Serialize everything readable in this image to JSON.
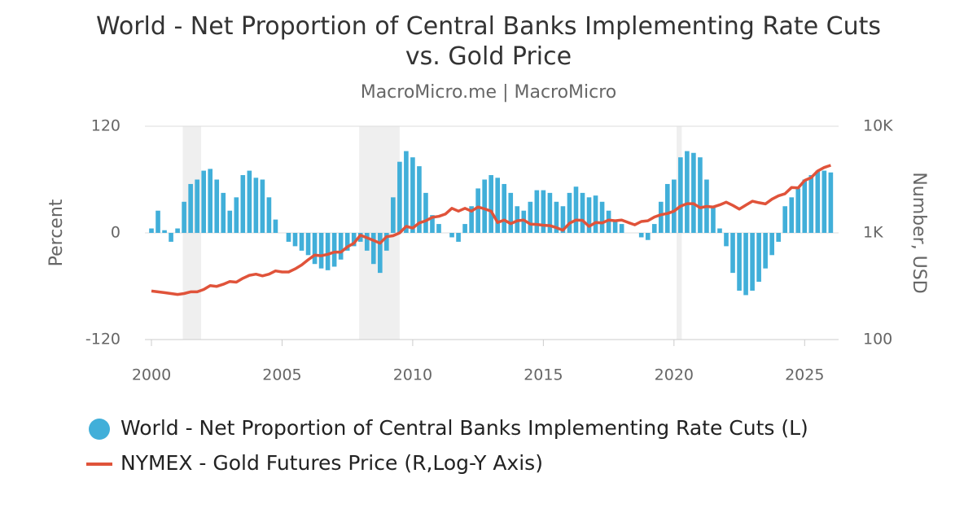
{
  "chart_data": {
    "type": "bar-line",
    "title": "World - Net Proportion of Central Banks Implementing Rate Cuts vs. Gold Price",
    "subtitle": "MacroMicro.me | MacroMicro",
    "y_label": "Percent",
    "y2_label": "Number, USD",
    "xlim": [
      2000,
      2026.3
    ],
    "xticks": [
      2000,
      2005,
      2010,
      2015,
      2020,
      2025
    ],
    "ylim": [
      -120,
      120
    ],
    "yticks": [
      -120,
      0,
      120
    ],
    "y2lim": [
      100,
      10000
    ],
    "y2_log": true,
    "y2ticks": [
      {
        "value": 100,
        "label": "100"
      },
      {
        "value": 1000,
        "label": "1K"
      },
      {
        "value": 10000,
        "label": "10K"
      }
    ],
    "grid": true,
    "bands": [
      [
        2001.2,
        2001.9
      ],
      [
        2007.95,
        2009.5
      ],
      [
        2020.1,
        2020.3
      ]
    ],
    "x": [
      2000,
      2000.25,
      2000.5,
      2000.75,
      2001,
      2001.25,
      2001.5,
      2001.75,
      2002,
      2002.25,
      2002.5,
      2002.75,
      2003,
      2003.25,
      2003.5,
      2003.75,
      2004,
      2004.25,
      2004.5,
      2004.75,
      2005,
      2005.25,
      2005.5,
      2005.75,
      2006,
      2006.25,
      2006.5,
      2006.75,
      2007,
      2007.25,
      2007.5,
      2007.75,
      2008,
      2008.25,
      2008.5,
      2008.75,
      2009,
      2009.25,
      2009.5,
      2009.75,
      2010,
      2010.25,
      2010.5,
      2010.75,
      2011,
      2011.25,
      2011.5,
      2011.75,
      2012,
      2012.25,
      2012.5,
      2012.75,
      2013,
      2013.25,
      2013.5,
      2013.75,
      2014,
      2014.25,
      2014.5,
      2014.75,
      2015,
      2015.25,
      2015.5,
      2015.75,
      2016,
      2016.25,
      2016.5,
      2016.75,
      2017,
      2017.25,
      2017.5,
      2017.75,
      2018,
      2018.25,
      2018.5,
      2018.75,
      2019,
      2019.25,
      2019.5,
      2019.75,
      2020,
      2020.25,
      2020.5,
      2020.75,
      2021,
      2021.25,
      2021.5,
      2021.75,
      2022,
      2022.25,
      2022.5,
      2022.75,
      2023,
      2023.25,
      2023.5,
      2023.75,
      2024,
      2024.25,
      2024.5,
      2024.75,
      2025,
      2025.25,
      2025.5,
      2025.75,
      2026
    ],
    "series": [
      {
        "name": "World - Net Proportion of Central Banks Implementing Rate Cuts (L)",
        "type": "bar",
        "color": "#41afd9",
        "values": [
          5,
          25,
          3,
          -10,
          5,
          35,
          55,
          60,
          70,
          72,
          60,
          45,
          25,
          40,
          65,
          70,
          62,
          60,
          40,
          15,
          0,
          -10,
          -15,
          -20,
          -25,
          -35,
          -40,
          -42,
          -38,
          -30,
          -20,
          -15,
          -10,
          -20,
          -35,
          -45,
          -20,
          40,
          80,
          92,
          85,
          75,
          45,
          20,
          10,
          0,
          -5,
          -10,
          10,
          30,
          50,
          60,
          65,
          62,
          55,
          45,
          30,
          25,
          35,
          48,
          48,
          45,
          35,
          30,
          45,
          52,
          45,
          40,
          42,
          35,
          25,
          15,
          10,
          0,
          0,
          -5,
          -8,
          10,
          35,
          55,
          60,
          85,
          92,
          90,
          85,
          60,
          30,
          5,
          -15,
          -45,
          -65,
          -70,
          -65,
          -55,
          -40,
          -25,
          -10,
          30,
          40,
          50,
          60,
          65,
          70,
          70,
          68
        ]
      },
      {
        "name": "NYMEX - Gold Futures Price (R,Log-Y Axis)",
        "type": "line",
        "axis": "y2",
        "color": "#e0533a",
        "values": [
          285,
          280,
          275,
          270,
          265,
          270,
          280,
          280,
          295,
          320,
          315,
          330,
          350,
          345,
          375,
          400,
          410,
          395,
          410,
          440,
          430,
          430,
          460,
          500,
          560,
          620,
          610,
          630,
          660,
          660,
          740,
          800,
          950,
          900,
          850,
          800,
          920,
          940,
          1000,
          1150,
          1110,
          1240,
          1300,
          1400,
          1430,
          1500,
          1700,
          1600,
          1700,
          1600,
          1750,
          1680,
          1600,
          1250,
          1320,
          1220,
          1300,
          1320,
          1210,
          1200,
          1180,
          1170,
          1120,
          1060,
          1230,
          1320,
          1310,
          1150,
          1250,
          1240,
          1320,
          1300,
          1320,
          1250,
          1190,
          1280,
          1300,
          1410,
          1480,
          1520,
          1600,
          1780,
          1880,
          1880,
          1720,
          1770,
          1750,
          1830,
          1940,
          1810,
          1670,
          1820,
          1980,
          1920,
          1870,
          2070,
          2230,
          2330,
          2660,
          2640,
          3100,
          3300,
          3800,
          4100,
          4300
        ]
      }
    ]
  }
}
